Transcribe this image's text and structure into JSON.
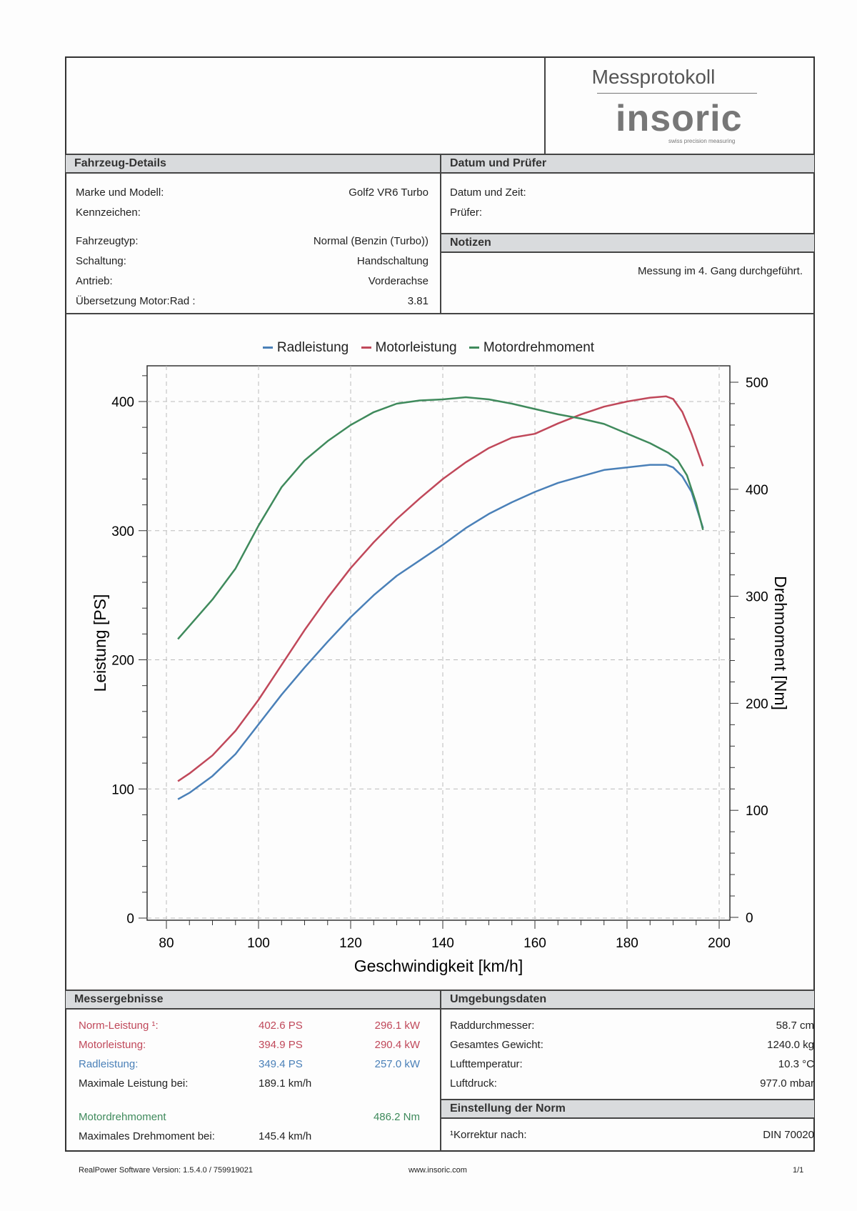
{
  "header": {
    "title": "Messprotokoll",
    "logo": "insoric",
    "logo_tagline": "swiss precision measuring"
  },
  "vehicle": {
    "heading": "Fahrzeug-Details",
    "rows": [
      {
        "label": "Marke und Modell:",
        "value": "Golf2 VR6 Turbo"
      },
      {
        "label": "Kennzeichen:",
        "value": ""
      },
      {
        "label": "Fahrzeugtyp:",
        "value": "Normal (Benzin (Turbo))"
      },
      {
        "label": "Schaltung:",
        "value": "Handschaltung"
      },
      {
        "label": "Antrieb:",
        "value": "Vorderachse"
      },
      {
        "label": "Übersetzung Motor:Rad :",
        "value": "3.81"
      }
    ]
  },
  "date_tester": {
    "heading": "Datum und Prüfer",
    "date_label": "Datum und Zeit:",
    "tester_label": "Prüfer:"
  },
  "notes": {
    "heading": "Notizen",
    "text": "Messung im 4. Gang durchgeführt."
  },
  "results": {
    "heading": "Messergebnisse",
    "rows": [
      {
        "label": "Norm-Leistung ¹:",
        "ps": "402.6 PS",
        "kw": "296.1 kW",
        "color": "red"
      },
      {
        "label": "Motorleistung:",
        "ps": "394.9 PS",
        "kw": "290.4 kW",
        "color": "red"
      },
      {
        "label": "Radleistung:",
        "ps": "349.4 PS",
        "kw": "257.0 kW",
        "color": "blue"
      },
      {
        "label": "Maximale Leistung bei:",
        "ps": "189.1 km/h",
        "kw": "",
        "color": "black"
      },
      {
        "label": "Motordrehmoment",
        "ps": "",
        "kw": "486.2 Nm",
        "color": "green"
      },
      {
        "label": "Maximales Drehmoment bei:",
        "ps": "145.4 km/h",
        "kw": "",
        "color": "black"
      }
    ]
  },
  "environment": {
    "heading": "Umgebungsdaten",
    "rows": [
      {
        "label": "Raddurchmesser:",
        "value": "58.7 cm"
      },
      {
        "label": "Gesamtes Gewicht:",
        "value": "1240.0 kg"
      },
      {
        "label": "Lufttemperatur:",
        "value": "10.3 °C"
      },
      {
        "label": "Luftdruck:",
        "value": "977.0 mbar"
      }
    ]
  },
  "norm": {
    "heading": "Einstellung der Norm",
    "label": "¹Korrektur nach:",
    "value": "DIN 70020"
  },
  "footer": {
    "version": "RealPower Software Version: 1.5.4.0 / 759919021",
    "url": "www.insoric.com",
    "page": "1/1"
  },
  "chart_data": {
    "type": "line",
    "xlabel": "Geschwindigkeit [km/h]",
    "ylabel": "Leistung [PS]",
    "y2label": "Drehmoment [Nm]",
    "xlim": [
      75,
      203
    ],
    "ylim": [
      0,
      420
    ],
    "y2lim": [
      0,
      505
    ],
    "xticks": [
      80,
      100,
      120,
      140,
      160,
      180,
      200
    ],
    "yticks": [
      0,
      100,
      200,
      300,
      400
    ],
    "y2ticks": [
      0,
      100,
      200,
      300,
      400,
      500
    ],
    "grid": true,
    "legend": "top-center",
    "series": [
      {
        "name": "Radleistung",
        "axis": "left",
        "color": "#4a80b8",
        "x": [
          82.5,
          85,
          90,
          95,
          100,
          105,
          110,
          115,
          120,
          125,
          130,
          135,
          140,
          145,
          150,
          155,
          160,
          165,
          170,
          175,
          180,
          185,
          188.5,
          190,
          192,
          194,
          196.5
        ],
        "y": [
          92,
          97,
          110,
          127,
          150,
          173,
          194,
          214,
          233,
          250,
          265,
          277,
          289,
          302,
          313,
          322,
          330,
          337,
          342,
          347,
          349,
          351,
          351,
          349,
          342,
          330,
          302
        ]
      },
      {
        "name": "Motorleistung",
        "axis": "left",
        "color": "#c0485a",
        "x": [
          82.5,
          85,
          90,
          95,
          100,
          105,
          110,
          115,
          120,
          125,
          130,
          135,
          140,
          145,
          150,
          155,
          160,
          165,
          170,
          175,
          180,
          185,
          188.5,
          190,
          192,
          194,
          196.5
        ],
        "y": [
          106,
          112,
          126,
          145,
          169,
          196,
          223,
          248,
          271,
          291,
          309,
          325,
          340,
          353,
          364,
          372,
          375,
          383,
          390,
          396,
          400,
          403,
          404,
          402,
          392,
          375,
          350
        ]
      },
      {
        "name": "Motordrehmoment",
        "axis": "right",
        "color": "#3f8a5c",
        "x": [
          82.5,
          90,
          95,
          100,
          105,
          110,
          115,
          120,
          125,
          130,
          135,
          140,
          145,
          150,
          155,
          160,
          165,
          170,
          175,
          180,
          185,
          189,
          191,
          193,
          195,
          196.5
        ],
        "y": [
          260,
          297,
          326,
          366,
          402,
          427,
          445,
          460,
          472,
          480,
          483,
          484,
          486,
          484,
          480,
          475,
          470,
          466,
          461,
          452,
          443,
          434,
          427,
          413,
          387,
          362
        ]
      }
    ]
  }
}
